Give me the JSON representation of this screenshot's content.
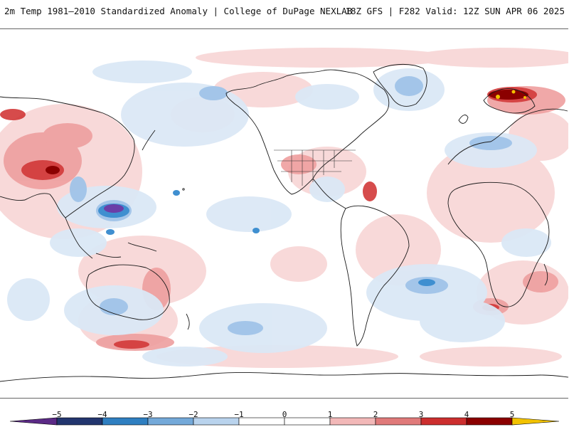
{
  "header": {
    "title": "2m Temp 1981–2010 Standardized Anomaly | College of DuPage NEXLAB",
    "run_info": "18Z GFS | F282 Valid: 12Z SUN APR 06 2025"
  },
  "colorbar": {
    "ticks": [
      "−5",
      "−4",
      "−3",
      "−2",
      "−1",
      "0",
      "1",
      "2",
      "3",
      "4",
      "5"
    ],
    "colors": [
      "#5b2a86",
      "#22356e",
      "#2f7fc1",
      "#74a9d9",
      "#b9d3ed",
      "#ffffff",
      "#ffffff",
      "#f2b8b8",
      "#e07a7a",
      "#cc2e2e",
      "#8b0000",
      "#f2c200"
    ]
  },
  "map": {
    "projection": "global cylindrical",
    "center": "Pacific / 180°",
    "colors": {
      "warm_light": "#f8d7d7",
      "warm_mid": "#ee9f9f",
      "warm_strong": "#d23838",
      "warm_extreme": "#8b0000",
      "cold_light": "#dbe8f6",
      "cold_mid": "#9fc3e8",
      "cold_strong": "#3f8fd0",
      "cold_extreme": "#6a3ea8",
      "hot_spot": "#f2c200",
      "borders": "#1a1a1a"
    }
  }
}
